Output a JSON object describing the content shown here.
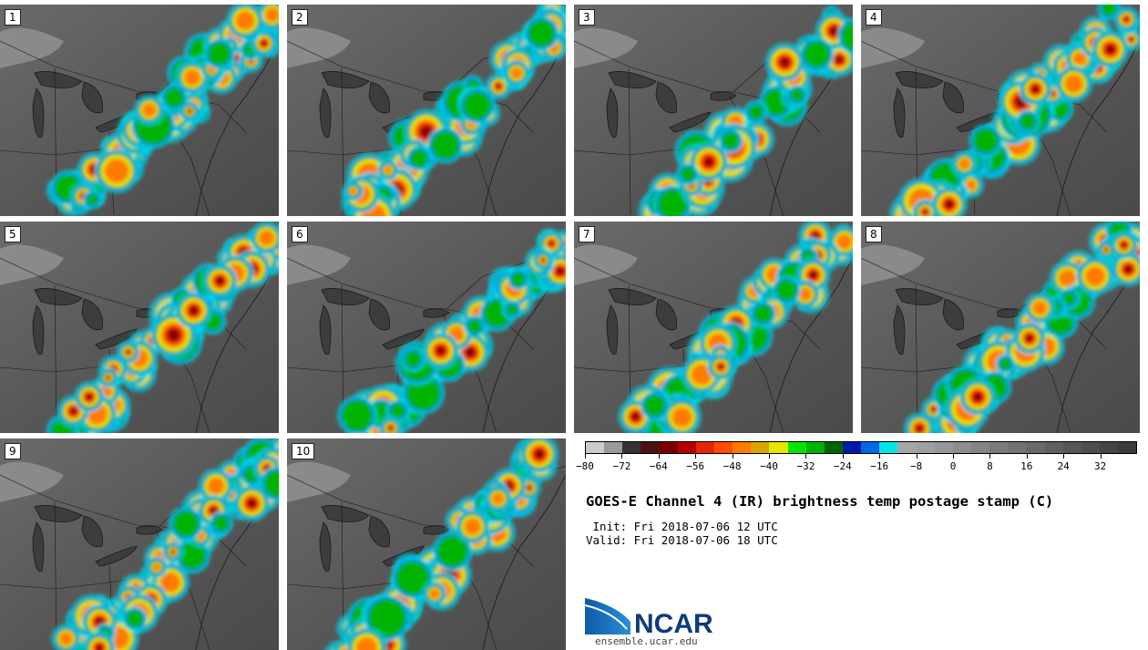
{
  "figure": {
    "title": "GOES-E Channel 4 (IR) brightness temp postage stamp (C)",
    "init": " Init: Fri 2018-07-06 12 UTC",
    "valid": "Valid: Fri 2018-07-06 18 UTC",
    "logo_text": "NCAR",
    "url": "ensemble.ucar.edu"
  },
  "members": [
    "1",
    "2",
    "3",
    "4",
    "5",
    "6",
    "7",
    "8",
    "9",
    "10"
  ],
  "colorbar": {
    "min": -80,
    "max": 40,
    "step": 4,
    "tick_labels": [
      "−80",
      "−72",
      "−64",
      "−56",
      "−48",
      "−40",
      "−32",
      "−24",
      "−16",
      "−8",
      "0",
      "8",
      "16",
      "24",
      "32"
    ],
    "tick_values": [
      -80,
      -72,
      -64,
      -56,
      -48,
      -40,
      -32,
      -24,
      -16,
      -8,
      0,
      8,
      16,
      24,
      32
    ],
    "colors": [
      "#cccccc",
      "#9a9a9a",
      "#333333",
      "#4b1212",
      "#7a0000",
      "#b30000",
      "#e62600",
      "#ff4d00",
      "#ff7a00",
      "#d9a300",
      "#e6e600",
      "#00e600",
      "#00b300",
      "#006600",
      "#0018a8",
      "#0066e6",
      "#00e6e6",
      "#a6a6a6",
      "#9f9f9f",
      "#969696",
      "#8d8d8d",
      "#848484",
      "#7b7b7b",
      "#727272",
      "#696969",
      "#606060",
      "#575757",
      "#4e4e4e",
      "#454545",
      "#3c3c3c"
    ]
  }
}
